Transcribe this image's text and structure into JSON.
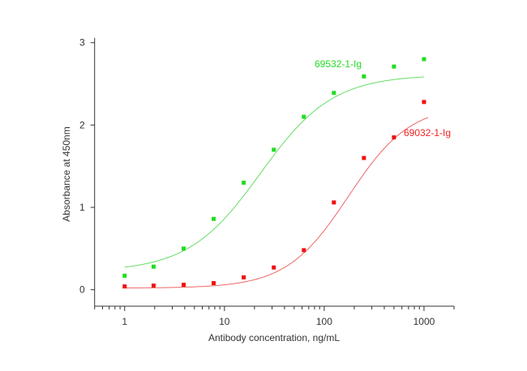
{
  "chart_data": {
    "type": "scatter",
    "xlabel": "Antibody concentration, ng/mL",
    "ylabel": "Absorbance at 450nm",
    "xscale": "log",
    "xlim": [
      0.5,
      2000
    ],
    "ylim": [
      -0.2,
      3
    ],
    "xticks": [
      1,
      10,
      100,
      1000
    ],
    "xtick_labels": [
      "1",
      "10",
      "100",
      "1000"
    ],
    "yticks": [
      0,
      1,
      2,
      3
    ],
    "ytick_labels": [
      "0",
      "1",
      "2",
      "3"
    ],
    "grid": false,
    "x": [
      1,
      1.95,
      3.9,
      7.8,
      15.6,
      31.25,
      62.5,
      125,
      250,
      500,
      1000
    ],
    "series": [
      {
        "name": "69532-1-Ig",
        "color": "#22dd22",
        "fit_color": "#66dd66",
        "values": [
          0.17,
          0.28,
          0.5,
          0.86,
          1.3,
          1.7,
          2.1,
          2.39,
          2.59,
          2.71,
          2.8
        ]
      },
      {
        "name": "69032-1-Ig",
        "color": "#ee1111",
        "fit_color": "#ee6666",
        "values": [
          0.04,
          0.05,
          0.06,
          0.08,
          0.15,
          0.27,
          0.48,
          1.06,
          1.6,
          1.85,
          2.28
        ]
      }
    ]
  }
}
